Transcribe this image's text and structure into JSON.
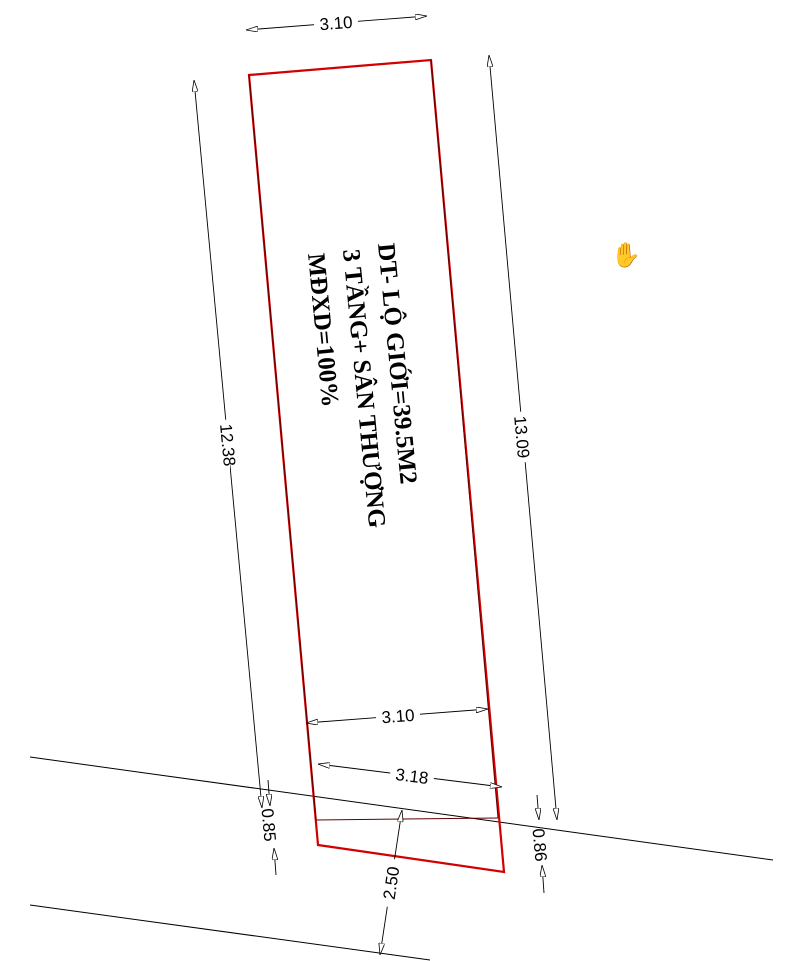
{
  "lot_notes": {
    "line1": "DT- LỘ GIỚI=39.5M2",
    "line2": "3 TẦNG+ SÂN THƯỢNG",
    "line3": "MĐXD=100%"
  },
  "dimensions": {
    "top_width": "3.10",
    "left_length": "12.38",
    "right_length": "13.09",
    "inner_width": "3.10",
    "front_width": "3.18",
    "left_setback": "0.85",
    "right_setback": "0.86",
    "road_offset": "2.50"
  },
  "colors": {
    "lot_boundary": "#d20000",
    "lines": "#000000"
  },
  "icons": {
    "pan_tool": "hand-icon"
  }
}
